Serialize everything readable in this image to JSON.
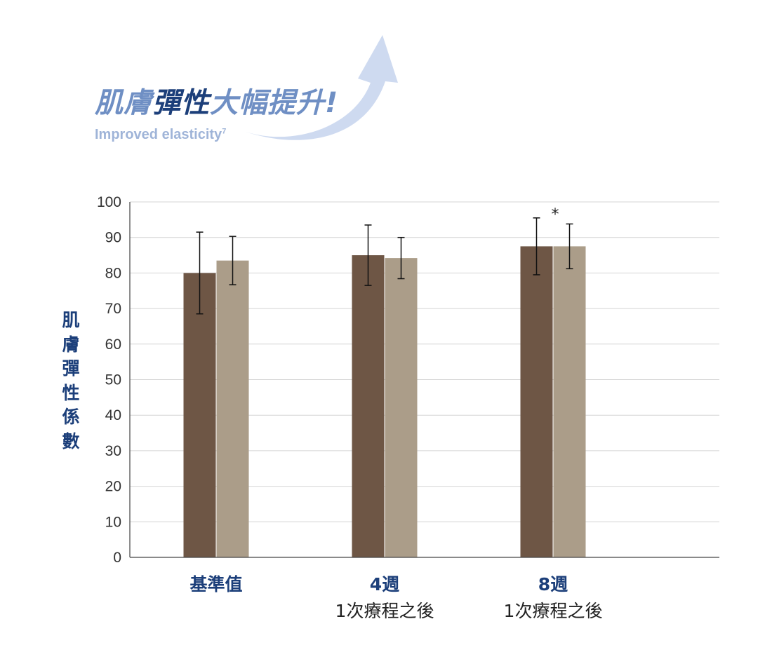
{
  "header": {
    "title_part1": "肌膚",
    "title_part2": "彈性",
    "title_part3": "大幅提升!",
    "subtitle": "Improved elasticity",
    "subtitle_sup": "7"
  },
  "chart_data": {
    "type": "bar",
    "ylabel": "肌膚彈性係數",
    "ylim": [
      0,
      100
    ],
    "yticks": [
      0,
      10,
      20,
      30,
      40,
      50,
      60,
      70,
      80,
      90,
      100
    ],
    "grid": true,
    "categories": [
      {
        "main": "基準值",
        "sub": ""
      },
      {
        "main": "4週",
        "sub": "1次療程之後"
      },
      {
        "main": "8週",
        "sub": "1次療程之後"
      }
    ],
    "series": [
      {
        "color": "#6e5645",
        "values": [
          80,
          85,
          87.5
        ],
        "error": [
          11.5,
          8.5,
          8
        ]
      },
      {
        "color": "#ab9d89",
        "values": [
          83.5,
          84.2,
          87.5
        ],
        "error": [
          6.8,
          5.8,
          6.3
        ]
      }
    ],
    "annotations": [
      {
        "text": "*",
        "category": 2
      }
    ]
  }
}
